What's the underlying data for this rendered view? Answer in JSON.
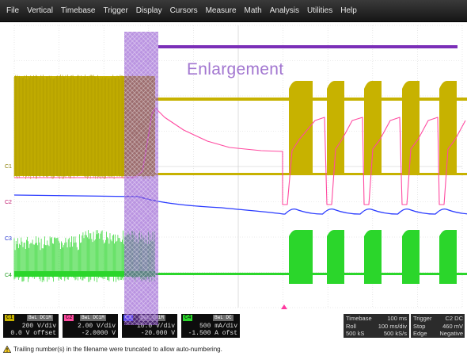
{
  "menu": [
    "File",
    "Vertical",
    "Timebase",
    "Trigger",
    "Display",
    "Cursors",
    "Measure",
    "Math",
    "Analysis",
    "Utilities",
    "Help"
  ],
  "annotation": {
    "label": "Enlargement"
  },
  "trace_markers": [
    "C1",
    "C2",
    "C3",
    "C4"
  ],
  "channels": [
    {
      "tag": "C1",
      "coupling": "BwL DC1M",
      "scale": "200 V/div",
      "offset": "0.0 V offset",
      "color": "#c7b200"
    },
    {
      "tag": "C2",
      "coupling": "BwL DC1M",
      "scale": "2.00 V/div",
      "offset": "-2.0000 V",
      "color": "#ff4aa0"
    },
    {
      "tag": "C3",
      "coupling": "BwL DC1M",
      "scale": "10.0 V/div",
      "offset": "-20.000 V",
      "color": "#2b3cff"
    },
    {
      "tag": "C4",
      "coupling": "BwL DC",
      "scale": "500 mA/div",
      "offset": "-1.500 A ofst",
      "color": "#2bd62b"
    }
  ],
  "timebase": {
    "title": "Timebase",
    "value": "100 ms",
    "mode": "Roll",
    "per_div": "100 ms/div",
    "samples": "500 kS",
    "rate": "500 kS/s"
  },
  "trigger": {
    "title": "Trigger",
    "source": "C2 DC",
    "mode": "Stop",
    "level": "460 mV",
    "type": "Edge",
    "slope": "Negative"
  },
  "status": "Trailing number(s) in the filename were truncated to allow auto-numbering.",
  "colors": {
    "c1": "#c7b200",
    "c2": "#ff4aa0",
    "c3": "#2b3cff",
    "c4": "#2bd62b",
    "enlargement": "#7b2fb8",
    "grid": "#d7d7d7"
  },
  "icons": {
    "status": "warning-icon"
  }
}
